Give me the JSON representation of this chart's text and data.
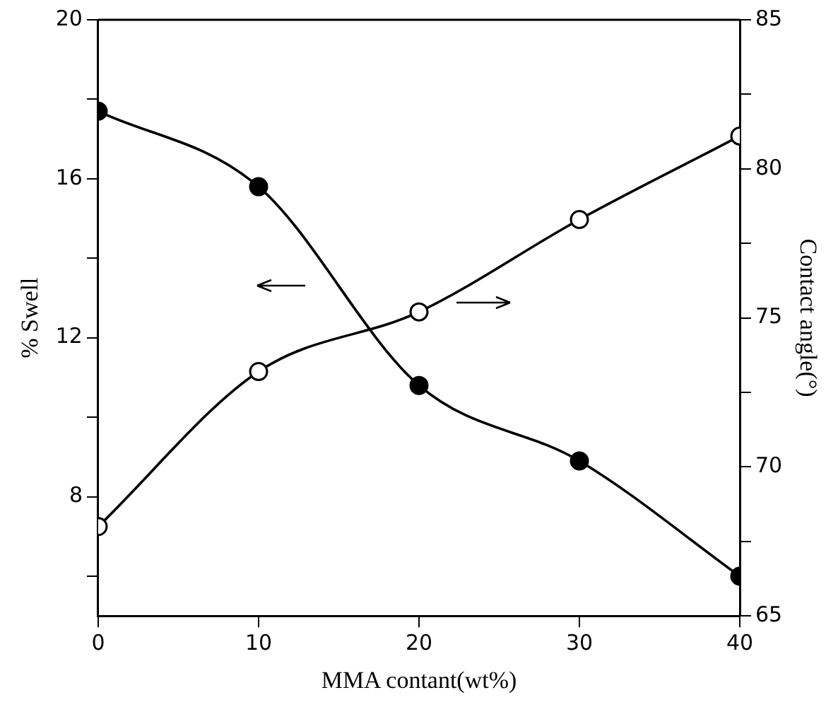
{
  "chart_data": {
    "type": "line",
    "xlabel": "MMA contant(wt%)",
    "ylabel": "% Swell",
    "y2label": "Contact angle(°)",
    "x": [
      0,
      10,
      20,
      30,
      40
    ],
    "xlim": [
      0,
      40
    ],
    "xticks": [
      0,
      10,
      20,
      30,
      40
    ],
    "ylim": [
      5,
      20
    ],
    "yticks": [
      {
        "value": 6,
        "label": null
      },
      8,
      {
        "value": 10,
        "label": null
      },
      12,
      {
        "value": 14,
        "label": null
      },
      16,
      {
        "value": 18,
        "label": null
      },
      20
    ],
    "y2lim": [
      65,
      85
    ],
    "y2ticks": [
      65,
      {
        "value": 67.5,
        "label": null
      },
      70,
      {
        "value": 72.5,
        "label": null
      },
      75,
      {
        "value": 77.5,
        "label": null
      },
      80,
      {
        "value": 82.5,
        "label": null
      },
      85
    ],
    "series": [
      {
        "color": "#000000",
        "values": [
          17.7,
          15.8,
          10.8,
          8.9,
          6.0
        ],
        "marker": "circle"
      },
      {
        "color": "#000000",
        "values": [
          68.0,
          73.2,
          75.2,
          78.3,
          81.1
        ],
        "axis": "y2",
        "marker": "circle"
      }
    ],
    "grid": false,
    "legend": false,
    "line_style": "solid"
  }
}
